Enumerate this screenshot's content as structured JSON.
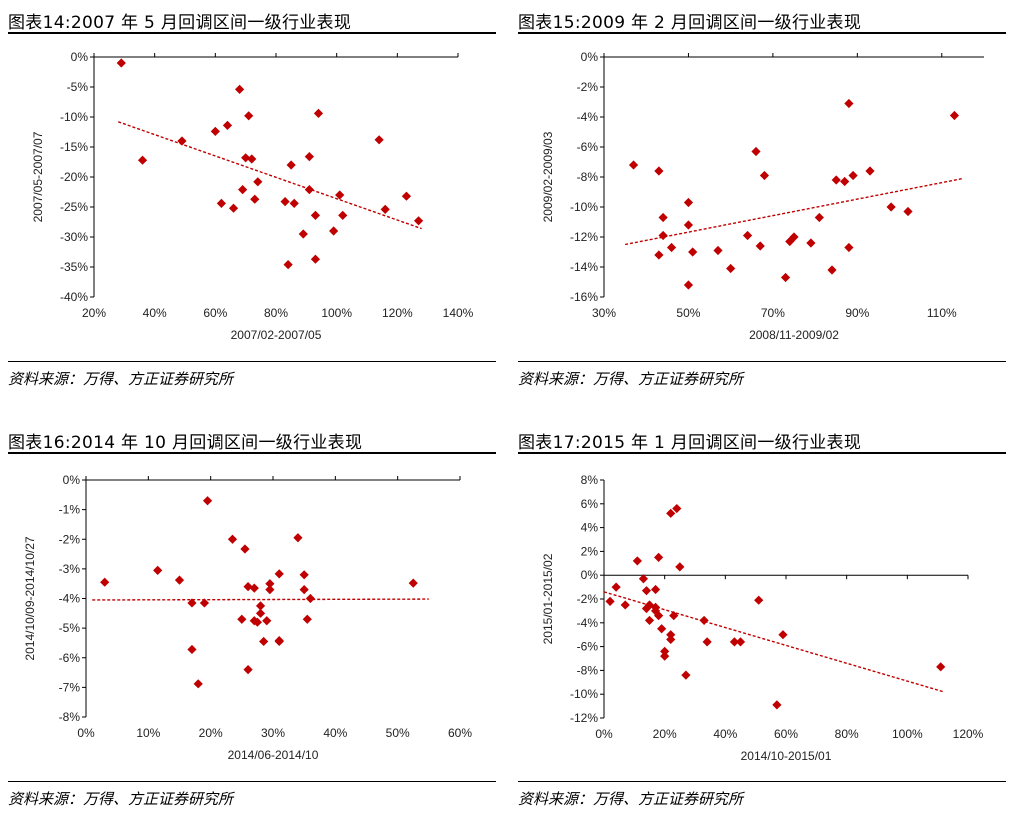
{
  "panels": [
    {
      "title": "图表14:2007 年 5 月回调区间一级行业表现",
      "source": "资料来源：万得、方正证券研究所",
      "chart_data": {
        "type": "scatter",
        "xlabel": "2007/02-2007/05",
        "ylabel": "2007/05-2007/07",
        "xlim": [
          20,
          140
        ],
        "ylim": [
          -40,
          0
        ],
        "xticks": [
          20,
          40,
          60,
          80,
          100,
          120,
          140
        ],
        "yticks": [
          0,
          -5,
          -10,
          -15,
          -20,
          -25,
          -30,
          -35,
          -40
        ],
        "xaxis_at_top": true,
        "marker_color": "#c00000",
        "points": [
          [
            29,
            -1
          ],
          [
            36,
            -17.2
          ],
          [
            49,
            -14
          ],
          [
            60,
            -12.4
          ],
          [
            62,
            -24.4
          ],
          [
            64,
            -11.4
          ],
          [
            66,
            -25.2
          ],
          [
            68,
            -5.4
          ],
          [
            69,
            -22.1
          ],
          [
            70,
            -16.8
          ],
          [
            71,
            -9.8
          ],
          [
            72,
            -17
          ],
          [
            73,
            -23.7
          ],
          [
            74,
            -20.8
          ],
          [
            83,
            -24.1
          ],
          [
            84,
            -34.6
          ],
          [
            85,
            -18
          ],
          [
            86,
            -24.4
          ],
          [
            89,
            -29.5
          ],
          [
            91,
            -16.6
          ],
          [
            91,
            -22.1
          ],
          [
            93,
            -26.4
          ],
          [
            93,
            -33.7
          ],
          [
            94,
            -9.4
          ],
          [
            99,
            -29
          ],
          [
            101,
            -23
          ],
          [
            102,
            -26.4
          ],
          [
            114,
            -13.8
          ],
          [
            116,
            -25.4
          ],
          [
            123,
            -23.2
          ],
          [
            127,
            -27.3
          ]
        ],
        "trendline": [
          [
            28,
            -10.8
          ],
          [
            128,
            -28.6
          ]
        ]
      }
    },
    {
      "title": "图表15:2009 年 2 月回调区间一级行业表现",
      "source": "资料来源：万得、方正证券研究所",
      "chart_data": {
        "type": "scatter",
        "xlabel": "2008/11-2009/02",
        "ylabel": "2009/02-2009/03",
        "xlim": [
          30,
          120
        ],
        "ylim": [
          -16,
          0
        ],
        "xticks": [
          30,
          50,
          70,
          90,
          110
        ],
        "yticks": [
          0,
          -2,
          -4,
          -6,
          -8,
          -10,
          -12,
          -14,
          -16
        ],
        "xaxis_at_top": true,
        "marker_color": "#c00000",
        "points": [
          [
            37,
            -7.2
          ],
          [
            43,
            -7.6
          ],
          [
            43,
            -13.2
          ],
          [
            44,
            -11.9
          ],
          [
            44,
            -10.7
          ],
          [
            46,
            -12.7
          ],
          [
            50,
            -11.2
          ],
          [
            50,
            -9.7
          ],
          [
            50,
            -15.2
          ],
          [
            51,
            -13
          ],
          [
            57,
            -12.9
          ],
          [
            60,
            -14.1
          ],
          [
            64,
            -11.9
          ],
          [
            66,
            -6.3
          ],
          [
            67,
            -12.6
          ],
          [
            68,
            -7.9
          ],
          [
            73,
            -14.7
          ],
          [
            74,
            -12.3
          ],
          [
            75,
            -12
          ],
          [
            79,
            -12.4
          ],
          [
            81,
            -10.7
          ],
          [
            84,
            -14.2
          ],
          [
            85,
            -8.2
          ],
          [
            87,
            -8.3
          ],
          [
            88,
            -3.1
          ],
          [
            88,
            -12.7
          ],
          [
            89,
            -7.9
          ],
          [
            93,
            -7.6
          ],
          [
            98,
            -10
          ],
          [
            102,
            -10.3
          ],
          [
            113,
            -3.9
          ]
        ],
        "trendline": [
          [
            35,
            -12.5
          ],
          [
            115,
            -8.1
          ]
        ]
      }
    },
    {
      "title": "图表16:2014 年 10 月回调区间一级行业表现",
      "source": "资料来源：万得、方正证券研究所",
      "chart_data": {
        "type": "scatter",
        "xlabel": "2014/06-2014/10",
        "ylabel": "2014/10/09-2014/10/27",
        "xlim": [
          0,
          60
        ],
        "ylim": [
          -8,
          0
        ],
        "xticks": [
          0,
          10,
          20,
          30,
          40,
          50,
          60
        ],
        "yticks": [
          0,
          -1,
          -2,
          -3,
          -4,
          -5,
          -6,
          -7,
          -8
        ],
        "xaxis_at_top": true,
        "marker_color": "#c00000",
        "points": [
          [
            3,
            -3.45
          ],
          [
            11.5,
            -3.05
          ],
          [
            15,
            -3.38
          ],
          [
            17,
            -4.15
          ],
          [
            17,
            -5.72
          ],
          [
            18,
            -6.88
          ],
          [
            19,
            -4.15
          ],
          [
            19.5,
            -0.7
          ],
          [
            23.5,
            -2
          ],
          [
            25,
            -4.7
          ],
          [
            25.5,
            -2.33
          ],
          [
            26,
            -6.4
          ],
          [
            26,
            -3.6
          ],
          [
            27,
            -3.65
          ],
          [
            27,
            -4.75
          ],
          [
            27.5,
            -4.8
          ],
          [
            28,
            -4.5
          ],
          [
            28,
            -4.25
          ],
          [
            28.5,
            -5.45
          ],
          [
            29,
            -4.75
          ],
          [
            29.5,
            -3.7
          ],
          [
            29.5,
            -3.5
          ],
          [
            31,
            -3.17
          ],
          [
            31,
            -5.45
          ],
          [
            31,
            -5.42
          ],
          [
            34,
            -1.95
          ],
          [
            35,
            -3.7
          ],
          [
            35,
            -3.2
          ],
          [
            35.5,
            -4.7
          ],
          [
            36,
            -4
          ],
          [
            52.5,
            -3.48
          ]
        ],
        "trendline": [
          [
            1,
            -4.05
          ],
          [
            55,
            -4.02
          ]
        ]
      }
    },
    {
      "title": "图表17:2015 年 1 月回调区间一级行业表现",
      "source": "资料来源：万得、方正证券研究所",
      "chart_data": {
        "type": "scatter",
        "xlabel": "2014/10-2015/01",
        "ylabel": "2015/01-2015/02",
        "xlim": [
          0,
          120
        ],
        "ylim": [
          -12,
          8
        ],
        "xticks": [
          0,
          20,
          40,
          60,
          80,
          100,
          120
        ],
        "yticks": [
          8,
          6,
          4,
          2,
          0,
          -2,
          -4,
          -6,
          -8,
          -10,
          -12
        ],
        "xaxis_at_top": false,
        "marker_color": "#c00000",
        "points": [
          [
            2,
            -2.2
          ],
          [
            4,
            -1
          ],
          [
            7,
            -2.5
          ],
          [
            11,
            1.2
          ],
          [
            13,
            -0.3
          ],
          [
            14,
            -1.3
          ],
          [
            14,
            -2.8
          ],
          [
            15,
            -3.8
          ],
          [
            15,
            -2.5
          ],
          [
            17,
            -1.2
          ],
          [
            17,
            -3
          ],
          [
            17,
            -2.7
          ],
          [
            18,
            -3.4
          ],
          [
            18,
            1.5
          ],
          [
            19,
            -4.5
          ],
          [
            20,
            -6.4
          ],
          [
            20,
            -6.8
          ],
          [
            22,
            -5
          ],
          [
            22,
            -5.4
          ],
          [
            22,
            5.2
          ],
          [
            23,
            -3.4
          ],
          [
            24,
            5.6
          ],
          [
            25,
            0.7
          ],
          [
            27,
            -8.4
          ],
          [
            33,
            -3.8
          ],
          [
            34,
            -5.6
          ],
          [
            43,
            -5.6
          ],
          [
            45,
            -5.6
          ],
          [
            51,
            -2.1
          ],
          [
            57,
            -10.9
          ],
          [
            59,
            -5
          ],
          [
            111,
            -7.7
          ]
        ],
        "trendline": [
          [
            0,
            -1.4
          ],
          [
            112,
            -9.8
          ]
        ]
      }
    }
  ]
}
